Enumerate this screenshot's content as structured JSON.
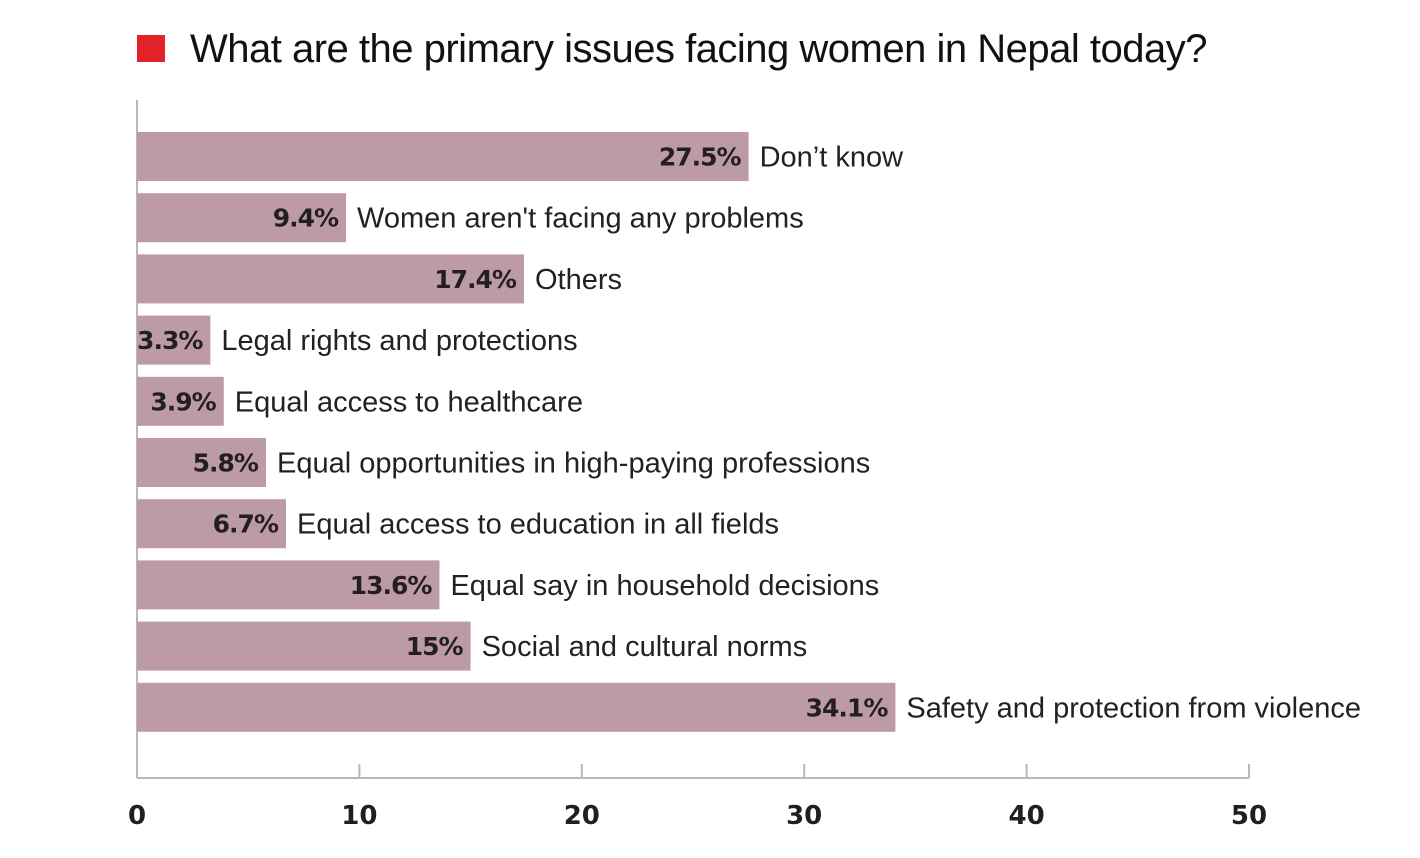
{
  "chart_data": {
    "type": "bar",
    "orientation": "horizontal",
    "title": "What are the primary issues facing women in Nepal today?",
    "categories": [
      "Don’t know",
      "Women aren't facing any problems",
      "Others",
      "Legal rights and protections",
      "Equal access to healthcare",
      "Equal opportunities in high-paying professions",
      "Equal access to education in all fields",
      "Equal say in household decisions",
      "Social and cultural norms",
      "Safety and protection from violence"
    ],
    "values": [
      27.5,
      9.4,
      17.4,
      3.3,
      3.9,
      5.8,
      6.7,
      13.6,
      15,
      34.1
    ],
    "value_labels": [
      "27.5%",
      "9.4%",
      "17.4%",
      "3.3%",
      "3.9%",
      "5.8%",
      "6.7%",
      "13.6%",
      "15%",
      "34.1%"
    ],
    "xlim": [
      0,
      50
    ],
    "xticks": [
      0,
      10,
      20,
      30,
      40,
      50
    ],
    "xlabel": "",
    "ylabel": "",
    "grid": false,
    "legend": "none"
  },
  "colors": {
    "bar": "#bc9aa8",
    "title_marker": "#e2232a",
    "axis": "#b8b8b8"
  }
}
